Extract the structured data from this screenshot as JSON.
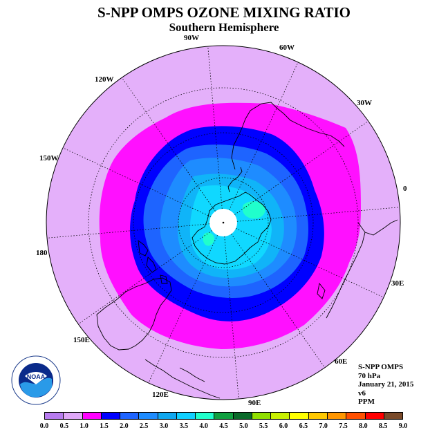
{
  "title": "S-NPP OMPS OZONE MIXING RATIO",
  "subtitle": "Southern Hemisphere",
  "longitude_labels": [
    "90W",
    "60W",
    "30W",
    "0",
    "30E",
    "60E",
    "90E",
    "120E",
    "150E",
    "180",
    "150W",
    "120W"
  ],
  "info": {
    "instrument": "S-NPP OMPS",
    "level": "70 hPa",
    "date": "January 21, 2015",
    "version": "v6",
    "unit": "PPM"
  },
  "logo_text": "NOAA",
  "colorbar": {
    "ticks": [
      "0.0",
      "0.5",
      "1.0",
      "1.5",
      "2.0",
      "2.5",
      "3.0",
      "3.5",
      "4.0",
      "4.5",
      "5.0",
      "5.5",
      "6.0",
      "6.5",
      "7.0",
      "7.5",
      "8.0",
      "8.5",
      "9.0"
    ],
    "colors": [
      "#b87cf0",
      "#e0a8f8",
      "#ff00ff",
      "#0000ff",
      "#1e64ff",
      "#1e8cff",
      "#10a8f0",
      "#10d0ff",
      "#20ffcc",
      "#10a040",
      "#0a6a2a",
      "#90e000",
      "#c8f000",
      "#ffff00",
      "#ffc800",
      "#ff9600",
      "#ff5000",
      "#ff0000",
      "#7a4a2a"
    ]
  },
  "map_colors": {
    "background": "#e4b0fa",
    "level_1_0": "#ff10ff",
    "level_1_5": "#0000ff",
    "level_2_0": "#1e64ff",
    "level_2_5": "#1e8cff",
    "level_3_0": "#10b4f8",
    "level_3_5": "#10d8ff",
    "level_4_0": "#20ffcc"
  }
}
